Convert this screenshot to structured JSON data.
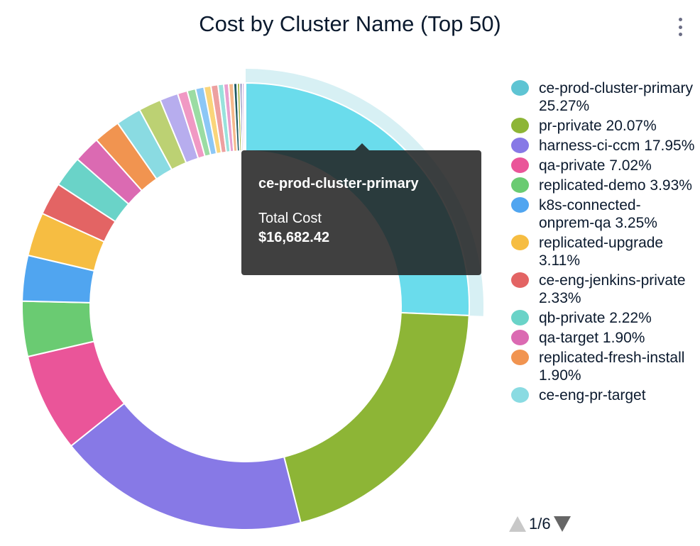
{
  "title": "Cost by Cluster Name (Top 50)",
  "chart_data": {
    "type": "pie",
    "variant": "donut",
    "title": "Cost by Cluster Name (Top 50)",
    "legend_position": "right",
    "slices": [
      {
        "name": "ce-prod-cluster-primary",
        "value": 25.27,
        "label": "ce-prod-cluster-primary 25.27%",
        "color": "#5ec4d3"
      },
      {
        "name": "pr-private",
        "value": 20.07,
        "label": "pr-private 20.07%",
        "color": "#8db536"
      },
      {
        "name": "harness-ci-ccm",
        "value": 17.95,
        "label": "harness-ci-ccm 17.95%",
        "color": "#8779e6"
      },
      {
        "name": "qa-private",
        "value": 7.02,
        "label": "qa-private 7.02%",
        "color": "#ea5599"
      },
      {
        "name": "replicated-demo",
        "value": 3.93,
        "label": "replicated-demo 3.93%",
        "color": "#6acb72"
      },
      {
        "name": "k8s-connected-onprem-qa",
        "value": 3.25,
        "label": "k8s-connected-onprem-qa 3.25%",
        "color": "#50a5f0"
      },
      {
        "name": "replicated-upgrade",
        "value": 3.11,
        "label": "replicated-upgrade 3.11%",
        "color": "#f6bd42"
      },
      {
        "name": "ce-eng-jenkins-private",
        "value": 2.33,
        "label": "ce-eng-jenkins-private 2.33%",
        "color": "#e36464"
      },
      {
        "name": "qb-private",
        "value": 2.22,
        "label": "qb-private 2.22%",
        "color": "#6ad3c8"
      },
      {
        "name": "qa-target",
        "value": 1.9,
        "label": "qa-target 1.90%",
        "color": "#db6ab2"
      },
      {
        "name": "replicated-fresh-install",
        "value": 1.9,
        "label": "replicated-fresh-install 1.90%",
        "color": "#f19450"
      },
      {
        "name": "ce-eng-pr-target",
        "value": 1.8,
        "label": "ce-eng-pr-target",
        "color": "#8adbe2"
      },
      {
        "value": 1.6,
        "color": "#bcd173"
      },
      {
        "value": 1.3,
        "color": "#b7adee"
      },
      {
        "value": 0.7,
        "color": "#f099c4"
      },
      {
        "value": 0.6,
        "color": "#9bdca3"
      },
      {
        "value": 0.6,
        "color": "#8cc7f6"
      },
      {
        "value": 0.5,
        "color": "#fad57a"
      },
      {
        "value": 0.5,
        "color": "#eda0a0"
      },
      {
        "value": 0.4,
        "color": "#98e2dc"
      },
      {
        "value": 0.35,
        "color": "#e8a0d0"
      },
      {
        "value": 0.35,
        "color": "#f5b98c"
      },
      {
        "value": 0.25,
        "color": "#1e5a64"
      },
      {
        "value": 0.2,
        "color": "#a4b84a"
      },
      {
        "value": 0.15,
        "color": "#3a3a8a"
      },
      {
        "value": 0.15,
        "color": "#c9a0dc"
      },
      {
        "value": 0.1,
        "color": "#999999"
      }
    ],
    "highlighted": "ce-prod-cluster-primary"
  },
  "tooltip": {
    "name": "ce-prod-cluster-primary",
    "label": "Total Cost",
    "value": "$16,682.42"
  },
  "pager": {
    "text": "1/6"
  }
}
